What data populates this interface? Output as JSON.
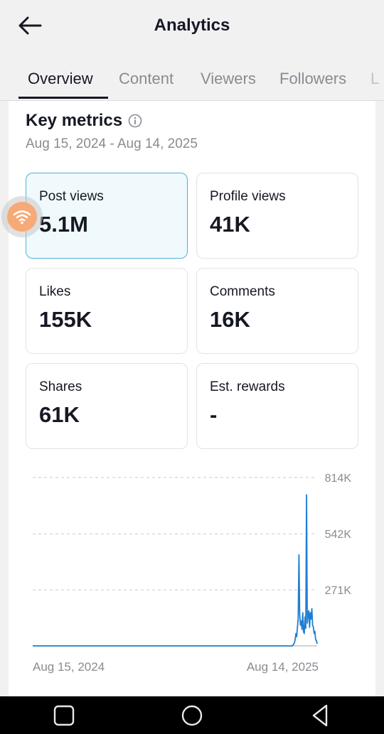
{
  "header": {
    "title": "Analytics"
  },
  "tabs": [
    "Overview",
    "Content",
    "Viewers",
    "Followers",
    "L"
  ],
  "key_metrics": {
    "title": "Key metrics",
    "date_range": "Aug 15, 2024 - Aug 14, 2025",
    "items": [
      {
        "label": "Post views",
        "value": "5.1M",
        "selected": true
      },
      {
        "label": "Profile views",
        "value": "41K"
      },
      {
        "label": "Likes",
        "value": "155K"
      },
      {
        "label": "Comments",
        "value": "16K"
      },
      {
        "label": "Shares",
        "value": "61K"
      },
      {
        "label": "Est. rewards",
        "value": "-"
      }
    ]
  },
  "chart_data": {
    "type": "line",
    "series": [
      {
        "values": [
          0,
          0,
          0,
          0,
          0,
          0,
          0,
          0,
          0,
          0,
          0,
          0,
          0,
          0,
          0,
          0,
          0,
          0,
          0,
          0,
          0,
          0,
          0,
          0,
          0,
          0,
          0,
          0,
          0,
          0,
          0,
          0,
          0,
          0,
          0,
          0,
          0,
          0,
          0,
          0,
          0,
          0,
          0,
          0,
          0,
          0,
          0,
          0,
          0,
          0,
          0,
          0,
          0,
          0,
          0,
          0,
          0,
          0,
          0,
          0,
          0,
          0,
          0,
          0,
          0,
          0,
          0,
          0,
          0,
          0,
          0,
          0,
          0,
          0,
          0,
          0,
          0,
          0,
          0,
          0,
          0,
          0,
          0,
          0,
          0,
          0,
          0,
          0,
          0,
          0,
          0,
          0,
          0,
          0,
          0,
          0,
          0,
          0,
          0,
          0,
          0,
          0,
          0,
          0,
          0,
          0,
          0,
          0,
          0,
          0,
          0,
          0,
          0,
          0,
          0,
          0,
          0,
          0,
          0,
          0,
          0,
          0,
          0,
          0,
          0,
          0,
          0,
          0,
          0,
          0,
          0,
          0,
          0,
          0,
          0,
          0,
          0,
          0,
          0,
          0,
          0,
          0,
          0,
          0,
          0,
          0,
          0,
          0,
          0,
          0,
          0,
          0,
          0,
          0,
          0,
          0,
          0,
          0,
          0,
          0,
          0,
          0,
          0,
          0,
          0,
          0,
          0,
          0,
          0,
          0,
          0,
          0,
          0,
          0,
          0,
          0,
          0,
          0,
          0,
          0,
          0,
          0,
          0,
          0,
          0,
          0,
          0,
          0,
          0,
          0,
          0,
          0,
          0,
          0,
          0,
          0,
          0,
          0,
          0,
          0,
          0,
          0,
          0,
          0,
          0,
          0,
          0,
          0,
          0,
          0,
          0,
          0,
          0,
          0,
          0,
          0,
          0,
          0,
          0,
          0,
          0,
          0,
          0,
          0,
          0,
          0,
          0,
          0,
          0,
          0,
          0,
          0,
          0,
          0,
          0,
          0,
          0,
          0,
          0,
          0,
          0,
          0,
          0,
          0,
          0,
          0,
          0,
          0,
          0,
          0,
          0,
          0,
          0,
          0,
          0,
          0,
          0,
          0,
          0,
          0,
          0,
          0,
          0,
          0,
          0,
          0,
          0,
          0,
          0,
          0,
          0,
          0,
          0,
          0,
          0,
          0,
          0,
          0,
          0,
          0,
          0,
          0,
          0,
          0,
          0,
          0,
          0,
          0,
          0,
          0,
          0,
          0,
          0,
          0,
          0,
          0,
          0,
          0,
          0,
          0,
          0,
          0,
          0,
          0,
          0,
          0,
          0,
          0,
          0,
          0,
          0,
          0,
          0,
          0,
          0,
          0,
          0,
          0,
          0,
          0,
          0,
          0,
          0,
          0,
          0,
          0,
          0,
          0,
          0,
          0,
          0,
          0,
          0,
          0,
          0,
          0,
          0,
          0,
          0,
          0,
          0,
          0,
          0,
          3000,
          8000,
          15000,
          30000,
          60000,
          45000,
          90000,
          130000,
          440000,
          150000,
          100000,
          120000,
          80000,
          160000,
          70000,
          60000,
          140000,
          85000,
          730000,
          110000,
          150000,
          170000,
          90000,
          160000,
          130000,
          180000,
          100000,
          90000,
          60000,
          70000,
          30000,
          25000,
          10000
        ]
      }
    ],
    "x_labels": [
      "Aug 15, 2024",
      "Aug 14, 2025"
    ],
    "y_ticks": [
      "271K",
      "542K",
      "814K"
    ],
    "ylim": [
      0,
      814000
    ],
    "grid": true,
    "colors": {
      "line": "#1f7fd1",
      "grid": "#c9c9cc"
    }
  }
}
